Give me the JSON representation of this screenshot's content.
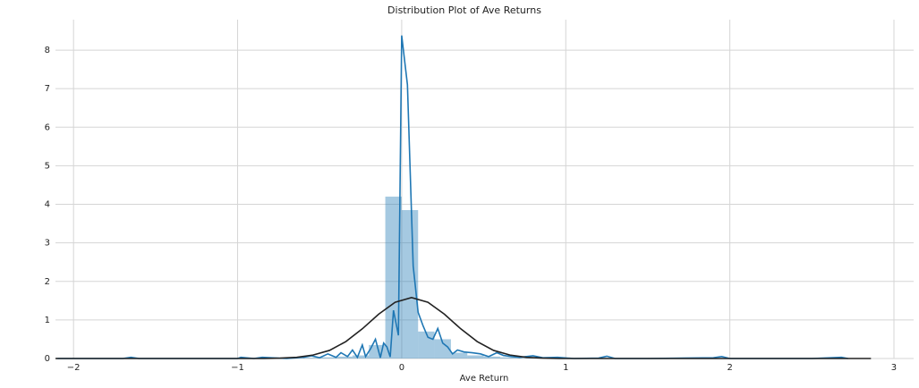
{
  "chart_data": {
    "type": "distplot",
    "title": "Distribution Plot of Ave Returns",
    "x_label": "Ave Return",
    "xlim": [
      -2.11,
      3.12
    ],
    "ylim": [
      0,
      8.79
    ],
    "xticks": [
      {
        "value": -2,
        "label": "−2"
      },
      {
        "value": -1,
        "label": "−1"
      },
      0,
      1,
      2,
      3
    ],
    "yticks": [
      0,
      1,
      2,
      3,
      4,
      5,
      6,
      7,
      8
    ],
    "grid": true,
    "hist_color": "#1f77b4",
    "bins": [
      -2.1,
      -2.0,
      -1.9,
      -1.8,
      -1.7,
      -1.6,
      -1.5,
      -1.4,
      -1.3,
      -1.2,
      -1.1,
      -1.0,
      -0.9,
      -0.8,
      -0.7,
      -0.6,
      -0.5,
      -0.4,
      -0.3,
      -0.2,
      -0.1,
      0.0,
      0.1,
      0.2,
      0.3,
      0.4,
      0.5,
      0.6,
      0.7,
      0.8,
      0.9,
      1.0,
      1.1,
      1.2,
      1.3,
      1.4,
      1.5,
      1.6,
      1.7,
      1.8,
      1.9,
      2.0,
      2.1,
      2.2,
      2.3,
      2.4,
      2.5,
      2.6,
      2.7,
      2.8,
      2.9
    ],
    "counts": [
      0.01,
      0,
      0,
      0,
      0.01,
      0,
      0,
      0,
      0,
      0,
      0,
      0.01,
      0,
      0.01,
      0,
      0.02,
      0.03,
      0.05,
      0.08,
      0.35,
      4.2,
      3.85,
      0.7,
      0.5,
      0.15,
      0.08,
      0.05,
      0.03,
      0.02,
      0.01,
      0.01,
      0,
      0.01,
      0.01,
      0,
      0,
      0,
      0.01,
      0,
      0,
      0.01,
      0,
      0,
      0,
      0,
      0,
      0,
      0,
      0.01,
      0
    ],
    "series": [
      {
        "name": "kde",
        "color": "#1f77b4",
        "x": [
          -2.1,
          -1.7,
          -1.65,
          -1.6,
          -1.3,
          -1.0,
          -0.98,
          -0.9,
          -0.85,
          -0.7,
          -0.6,
          -0.55,
          -0.5,
          -0.45,
          -0.4,
          -0.37,
          -0.33,
          -0.3,
          -0.27,
          -0.24,
          -0.22,
          -0.19,
          -0.16,
          -0.13,
          -0.11,
          -0.09,
          -0.07,
          -0.05,
          -0.02,
          0.0,
          0.035,
          0.07,
          0.1,
          0.13,
          0.16,
          0.19,
          0.22,
          0.25,
          0.28,
          0.31,
          0.34,
          0.38,
          0.43,
          0.48,
          0.53,
          0.58,
          0.62,
          0.67,
          0.72,
          0.8,
          0.86,
          0.95,
          1.05,
          1.2,
          1.25,
          1.3,
          1.5,
          1.9,
          1.95,
          2.0,
          2.5,
          2.68,
          2.72
        ],
        "values": [
          0,
          0,
          0.03,
          0,
          0,
          0,
          0.03,
          0,
          0.03,
          0,
          0.03,
          0.07,
          0.02,
          0.12,
          0.03,
          0.15,
          0.05,
          0.22,
          0.03,
          0.35,
          0.05,
          0.25,
          0.5,
          0.02,
          0.4,
          0.3,
          0.04,
          1.25,
          0.6,
          8.38,
          7.1,
          2.4,
          1.2,
          0.85,
          0.55,
          0.5,
          0.78,
          0.4,
          0.3,
          0.12,
          0.22,
          0.17,
          0.15,
          0.12,
          0.05,
          0.15,
          0.08,
          0.05,
          0.03,
          0.07,
          0.02,
          0.03,
          0,
          0.01,
          0.06,
          0,
          0,
          0.02,
          0.05,
          0,
          0,
          0.03,
          0
        ]
      },
      {
        "name": "fit",
        "color": "#222222",
        "x": [
          -2.11,
          -0.84,
          -0.74,
          -0.64,
          -0.54,
          -0.44,
          -0.34,
          -0.24,
          -0.14,
          -0.04,
          0.06,
          0.16,
          0.26,
          0.36,
          0.46,
          0.56,
          0.66,
          0.76,
          0.86,
          0.96,
          2.86
        ],
        "values": [
          0,
          0,
          0.01,
          0.03,
          0.09,
          0.21,
          0.44,
          0.77,
          1.15,
          1.46,
          1.58,
          1.46,
          1.15,
          0.77,
          0.44,
          0.21,
          0.09,
          0.03,
          0.01,
          0,
          0
        ]
      }
    ]
  }
}
